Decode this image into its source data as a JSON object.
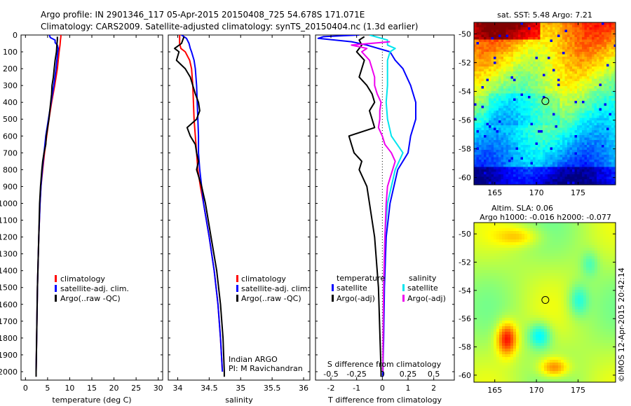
{
  "header": {
    "line1": "Argo profile: IN 2901346_117 05-Apr-2015 20150408_725 54.678S 171.071E",
    "line2": "Climatology: CARS2009. Satellite-adjusted climatology: synTS_20150404.nc (1.3d earlier)"
  },
  "colors": {
    "climatology": "#ff0000",
    "satellite": "#0000ff",
    "argo": "#000000",
    "salinity_satellite": "#00e5ee",
    "salinity_argo": "#ee00ee"
  },
  "chart_data": [
    {
      "type": "line",
      "id": "temperature",
      "xlabel": "temperature (deg C)",
      "xlim": [
        -1,
        31
      ],
      "xticks": [
        0,
        5,
        10,
        15,
        20,
        25,
        30
      ],
      "ylim": [
        2050,
        0
      ],
      "yticks": [
        0,
        100,
        200,
        300,
        400,
        500,
        600,
        700,
        800,
        900,
        1000,
        1100,
        1200,
        1300,
        1400,
        1500,
        1600,
        1700,
        1800,
        1900,
        2000
      ],
      "legend": [
        "climatology",
        "satellite-adj. clim.",
        "Argo(..raw -QC)"
      ],
      "series": [
        {
          "name": "climatology",
          "color": "#ff0000",
          "depth": [
            0,
            10,
            30,
            60,
            100,
            150,
            200,
            300,
            400,
            500,
            600,
            700,
            800,
            900,
            1000,
            1200,
            1500,
            2000
          ],
          "values": [
            8.0,
            8.0,
            7.9,
            7.8,
            7.6,
            7.4,
            7.2,
            6.6,
            5.9,
            5.3,
            4.8,
            4.3,
            3.9,
            3.5,
            3.3,
            3.0,
            2.7,
            2.4
          ]
        },
        {
          "name": "satellite-adj. clim.",
          "color": "#0000ff",
          "depth": [
            0,
            15,
            30,
            45,
            60,
            80,
            100,
            150,
            200,
            300,
            400,
            500,
            600,
            700,
            800,
            900,
            1000,
            1200,
            1500,
            2000
          ],
          "values": [
            5.4,
            5.6,
            6.7,
            6.7,
            7.2,
            7.4,
            7.3,
            7.1,
            6.9,
            6.4,
            5.8,
            5.2,
            4.6,
            4.2,
            3.8,
            3.5,
            3.3,
            3.0,
            2.7,
            2.4
          ]
        },
        {
          "name": "Argo(..raw -QC)",
          "color": "#000000",
          "depth": [
            10,
            30,
            60,
            100,
            150,
            200,
            250,
            300,
            350,
            400,
            450,
            500,
            550,
            600,
            650,
            700,
            750,
            800,
            900,
            1000,
            1200,
            1500,
            2000,
            2030
          ],
          "values": [
            7.2,
            7.2,
            7.1,
            7.0,
            6.7,
            6.5,
            6.3,
            6.0,
            5.9,
            5.7,
            5.5,
            5.3,
            5.0,
            4.7,
            4.6,
            4.2,
            3.9,
            3.7,
            3.4,
            3.2,
            3.0,
            2.7,
            2.4,
            2.4
          ]
        }
      ]
    },
    {
      "type": "line",
      "id": "salinity",
      "xlabel": "salinity",
      "xlim": [
        33.85,
        36.1
      ],
      "xticks": [
        34,
        34.5,
        35,
        35.5,
        36
      ],
      "ylim": [
        2050,
        0
      ],
      "legend": [
        "climatology",
        "satellite-adj. clim.",
        "Argo(..raw -QC)"
      ],
      "annotation": [
        "Indian ARGO",
        "PI: M Ravichandran"
      ],
      "series": [
        {
          "name": "climatology",
          "color": "#ff0000",
          "depth": [
            0,
            50,
            80,
            100,
            150,
            200,
            300,
            400,
            500,
            600,
            700,
            800,
            900,
            1000,
            1200,
            1400,
            1600,
            1800,
            2000
          ],
          "values": [
            34.03,
            34.03,
            34.05,
            34.12,
            34.19,
            34.22,
            34.24,
            34.25,
            34.26,
            34.28,
            34.3,
            34.32,
            34.36,
            34.41,
            34.5,
            34.58,
            34.64,
            34.68,
            34.71
          ]
        },
        {
          "name": "satellite-adj. clim.",
          "color": "#0000ff",
          "depth": [
            0,
            20,
            50,
            80,
            100,
            150,
            200,
            300,
            400,
            500,
            600,
            700,
            800,
            900,
            1000,
            1200,
            1400,
            1600,
            1800,
            2000
          ],
          "values": [
            34.06,
            34.14,
            34.18,
            34.2,
            34.22,
            34.26,
            34.28,
            34.3,
            34.31,
            34.32,
            34.33,
            34.33,
            34.35,
            34.38,
            34.41,
            34.5,
            34.58,
            34.64,
            34.68,
            34.71
          ]
        },
        {
          "name": "Argo(..raw -QC)",
          "color": "#000000",
          "depth": [
            10,
            50,
            80,
            100,
            150,
            200,
            250,
            300,
            350,
            400,
            450,
            500,
            550,
            600,
            650,
            700,
            750,
            800,
            900,
            1000,
            1200,
            1400,
            1600,
            1800,
            2000,
            2030
          ],
          "values": [
            34.1,
            34.06,
            33.95,
            34.02,
            33.98,
            34.12,
            34.2,
            34.24,
            34.28,
            34.33,
            34.35,
            34.3,
            34.15,
            34.2,
            34.28,
            34.3,
            34.33,
            34.3,
            34.38,
            34.44,
            34.53,
            34.62,
            34.68,
            34.72,
            34.74,
            34.74
          ]
        }
      ]
    },
    {
      "type": "line",
      "id": "difference",
      "xlabel": "T difference from climatology",
      "xlabel2": "S difference from climatology",
      "xlim": [
        -2.6,
        2.8
      ],
      "xticks": [
        -2,
        -1,
        0,
        1,
        2
      ],
      "xticks2_labels": [
        "-0.5",
        "-0.25",
        "0",
        "0.25",
        "0.5"
      ],
      "xticks2_positions": [
        -2,
        -1,
        0,
        1,
        2
      ],
      "ylim": [
        2050,
        0
      ],
      "legend_temperature": [
        "temperature",
        "satellite",
        "Argo(-adj)"
      ],
      "legend_salinity": [
        "salinity",
        "satellite",
        "Argo(-adj)"
      ],
      "series": [
        {
          "name": "temperature satellite",
          "color": "#0000ff",
          "depth": [
            0,
            10,
            20,
            40,
            60,
            100,
            150,
            200,
            300,
            400,
            500,
            600,
            700,
            800,
            1000,
            1200,
            1500,
            1800,
            2000,
            2030
          ],
          "values": [
            -0.9,
            -2.3,
            -2.5,
            -1.2,
            -0.6,
            0.3,
            0.5,
            0.8,
            1.1,
            1.3,
            1.3,
            1.1,
            1.0,
            0.6,
            0.3,
            0.15,
            0.08,
            0.05,
            0.02,
            0.02
          ]
        },
        {
          "name": "temperature Argo(-adj)",
          "color": "#000000",
          "depth": [
            10,
            30,
            60,
            100,
            150,
            200,
            250,
            300,
            350,
            400,
            450,
            500,
            550,
            600,
            650,
            700,
            750,
            800,
            900,
            1000,
            1200,
            1500,
            2000,
            2030
          ],
          "values": [
            -0.7,
            -0.9,
            -0.8,
            -1.0,
            -0.7,
            -0.8,
            -0.9,
            -0.6,
            -0.4,
            -0.3,
            -0.5,
            -0.4,
            -0.3,
            -1.3,
            -1.2,
            -1.1,
            -0.8,
            -0.9,
            -0.6,
            -0.5,
            -0.3,
            -0.15,
            -0.05,
            -0.05
          ]
        },
        {
          "name": "salinity satellite",
          "color": "#00e5ee",
          "depth": [
            0,
            30,
            60,
            80,
            100,
            150,
            200,
            300,
            400,
            500,
            600,
            700,
            800,
            1000,
            1200,
            1500,
            2000
          ],
          "values": [
            -0.5,
            0.2,
            0.2,
            0.5,
            0.3,
            0.2,
            0.2,
            0.2,
            0.15,
            0.2,
            0.35,
            0.8,
            0.5,
            0.2,
            0.1,
            0.05,
            0.02
          ]
        },
        {
          "name": "salinity Argo(-adj)",
          "color": "#ee00ee",
          "depth": [
            40,
            60,
            80,
            100,
            150,
            200,
            250,
            300,
            350,
            400,
            450,
            500,
            550,
            600,
            650,
            700,
            750,
            800,
            850,
            900,
            1000,
            1200,
            1500,
            1800,
            2000
          ],
          "values": [
            0.3,
            -1.2,
            -0.6,
            -0.8,
            -0.5,
            -0.4,
            -0.3,
            -0.3,
            -0.2,
            -0.05,
            -0.1,
            -0.1,
            -0.15,
            0.0,
            0.1,
            0.35,
            0.5,
            0.4,
            0.3,
            0.2,
            0.15,
            0.1,
            0.05,
            0.03,
            0.02
          ]
        }
      ]
    },
    {
      "type": "heatmap",
      "id": "sst-map",
      "title": "sat. SST: 5.48  Argo: 7.21",
      "xticks": [
        165,
        170,
        175
      ],
      "yticks": [
        -50,
        -52,
        -54,
        -56,
        -58,
        -60
      ],
      "xlim": [
        162.5,
        179.5
      ],
      "ylim": [
        -60.5,
        -49.2
      ],
      "marker": {
        "lon": 171.071,
        "lat": -54.678
      }
    },
    {
      "type": "heatmap",
      "id": "sla-map",
      "title": "Altim. SLA: 0.06",
      "subtitle": "Argo h1000: -0.016 h2000: -0.077",
      "xticks": [
        165,
        170,
        175
      ],
      "yticks": [
        -50,
        -52,
        -54,
        -56,
        -58,
        -60
      ],
      "xlim": [
        162.5,
        179.5
      ],
      "ylim": [
        -60.5,
        -49.2
      ],
      "marker": {
        "lon": 171.071,
        "lat": -54.678
      }
    }
  ],
  "footer_credit": "©IMOS 12-Apr-2015 20:42:14"
}
